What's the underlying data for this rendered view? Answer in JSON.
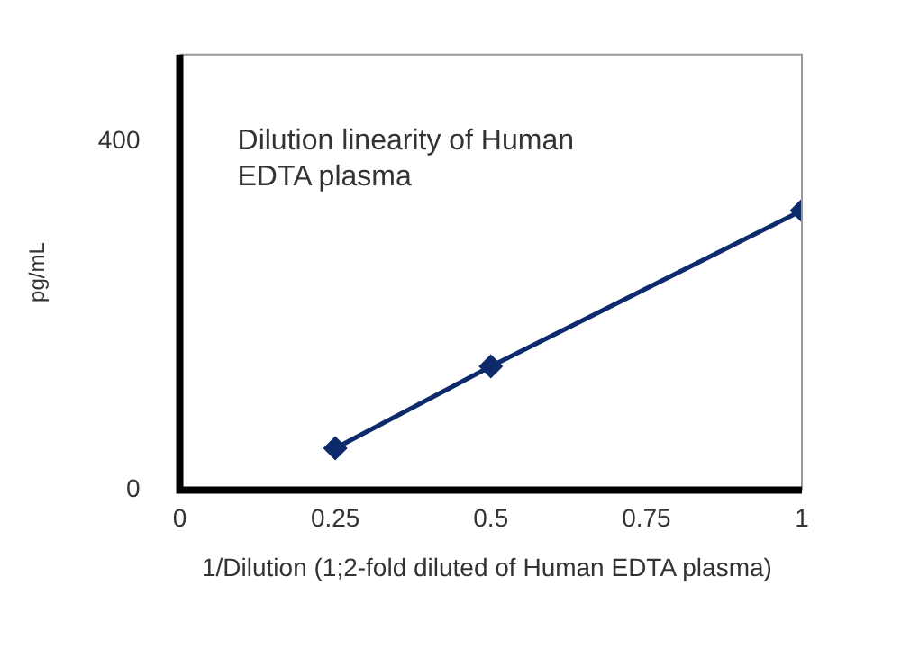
{
  "chart_data": {
    "type": "line",
    "title": "Dilution linearity of Human EDTA plasma",
    "xlabel": "1/Dilution  (1;2-fold diluted of Human EDTA plasma)",
    "ylabel": "pg/mL",
    "x": [
      0.25,
      0.5,
      1
    ],
    "series": [
      {
        "color": "#0d2b6b",
        "values": [
          48,
          142,
          321
        ]
      }
    ],
    "xlim": [
      0,
      1
    ],
    "xticks": [
      0,
      0.25,
      0.5,
      0.75,
      1
    ],
    "ylim": [
      0,
      500
    ],
    "yticks": [
      0,
      400
    ],
    "grid": false,
    "legend": false,
    "marker": "diamond",
    "line_style": "solid"
  }
}
